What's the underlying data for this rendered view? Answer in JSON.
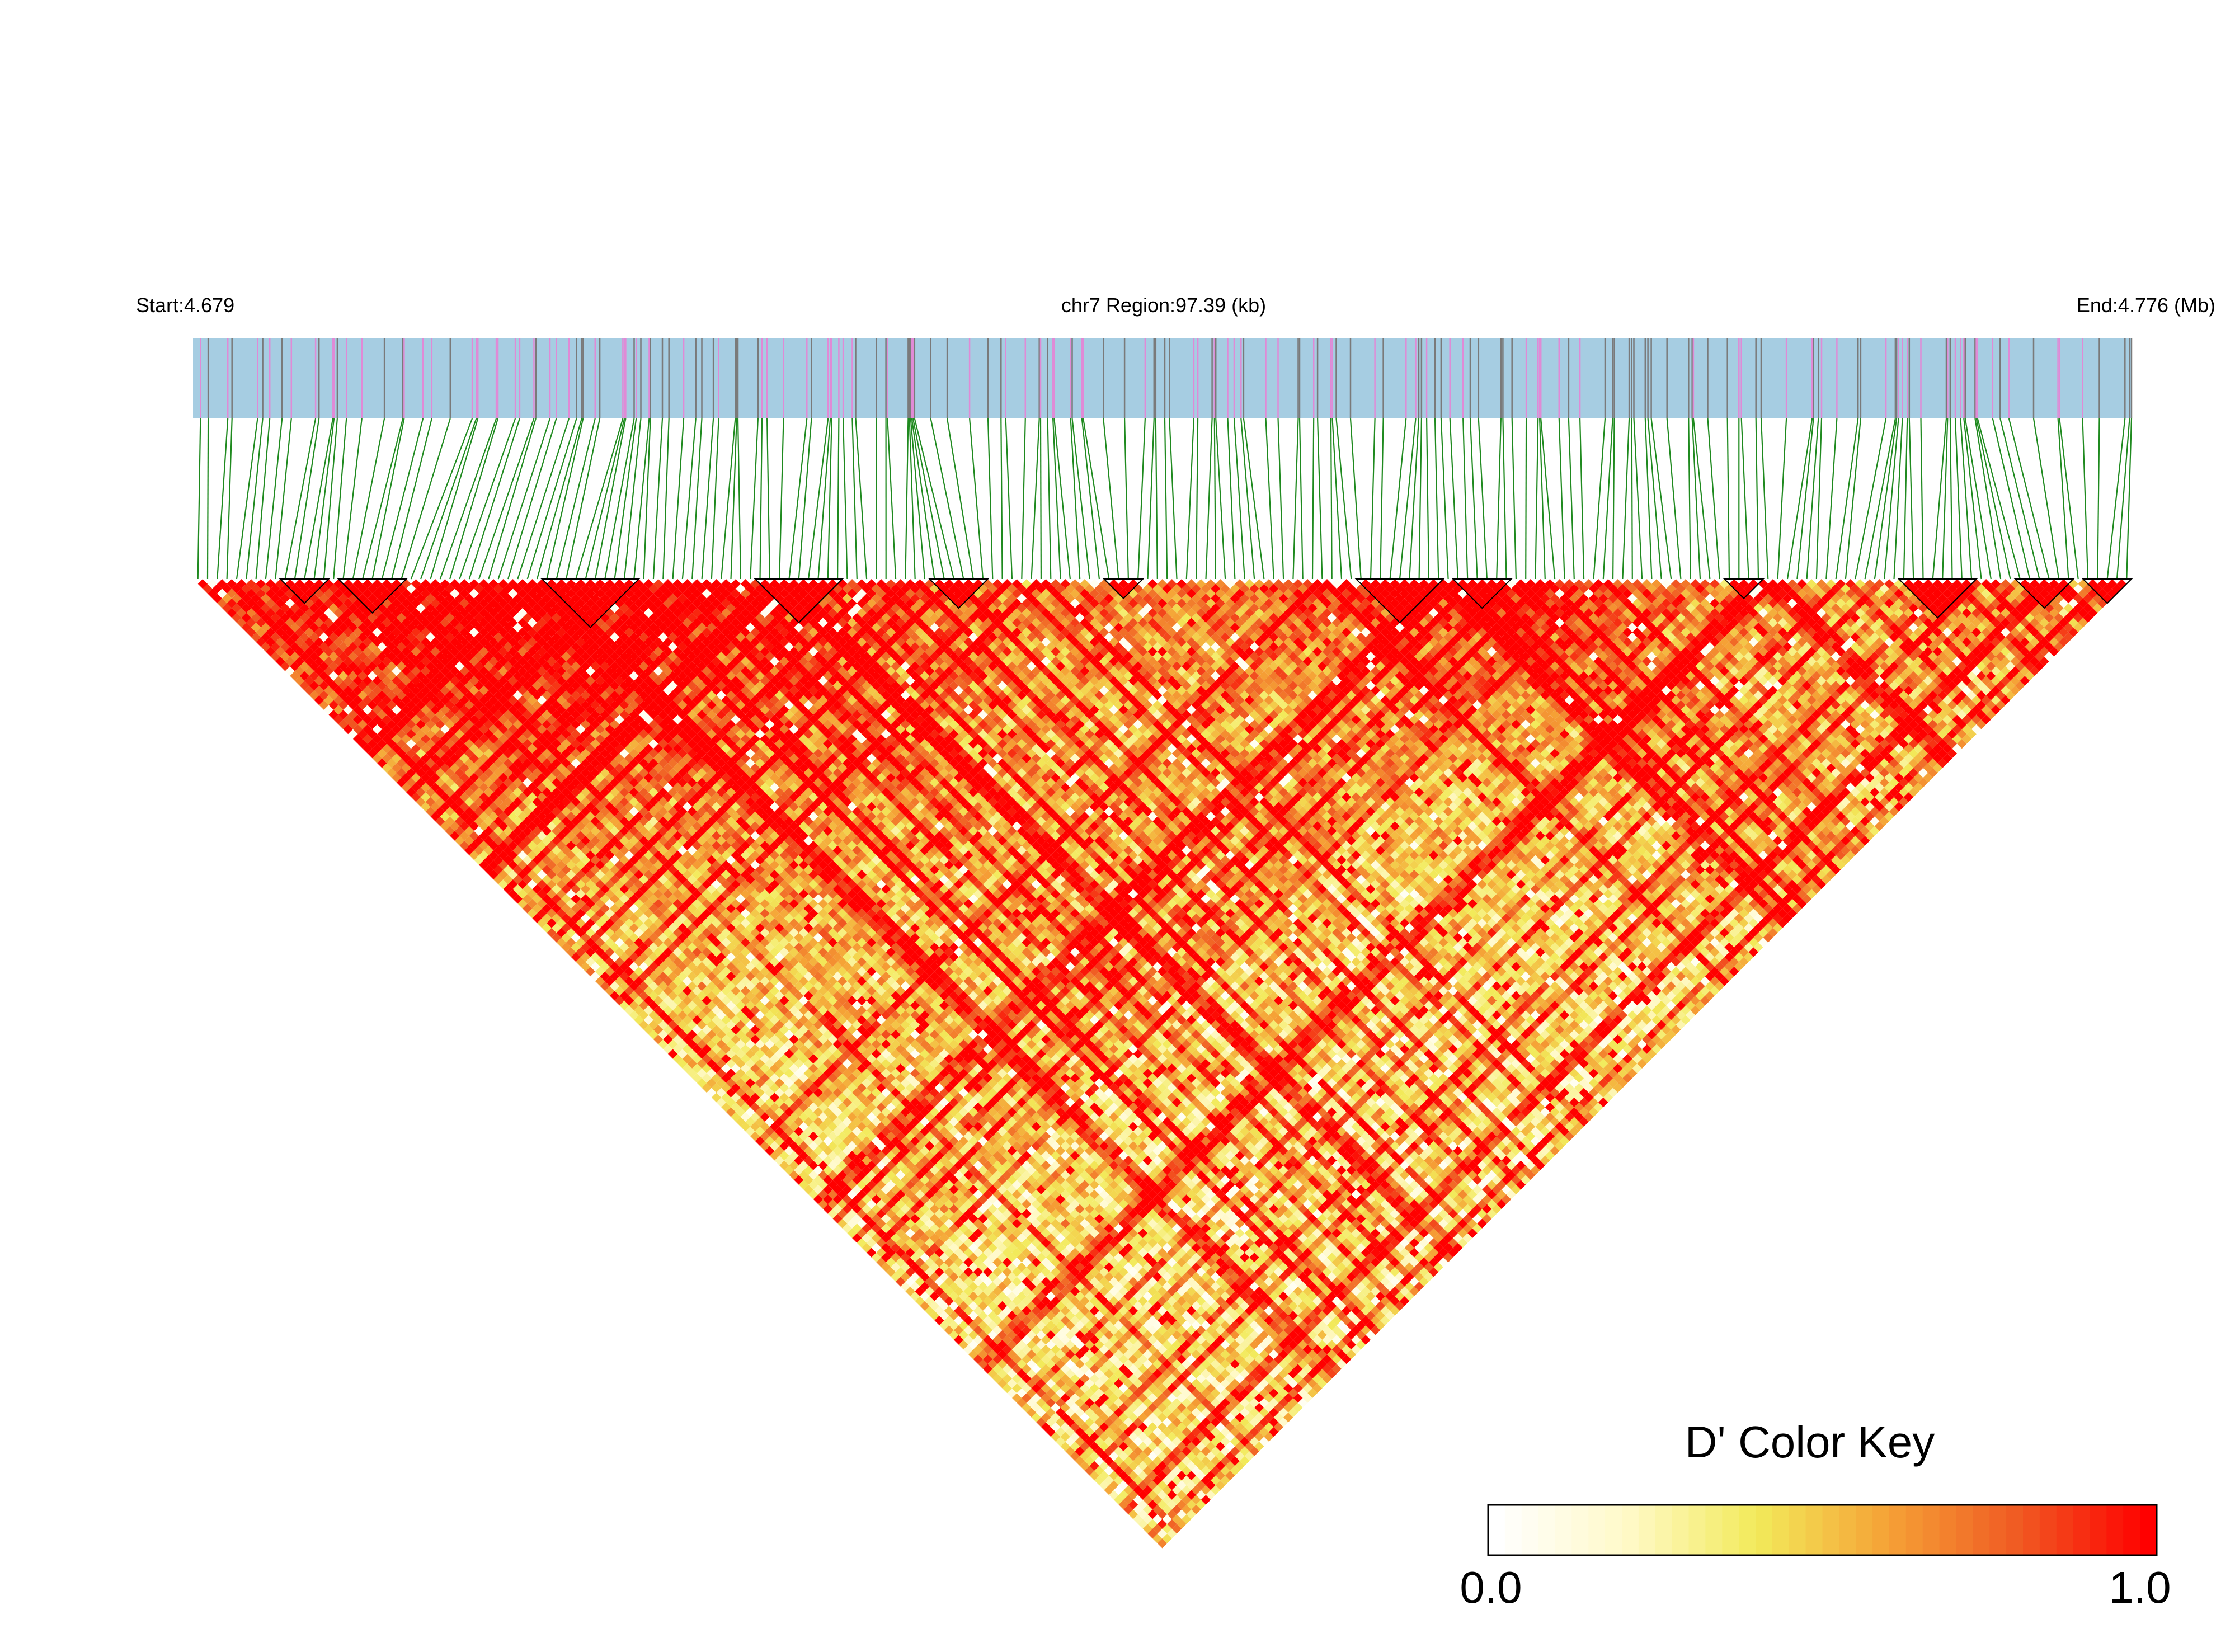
{
  "chart_data": {
    "type": "heatmap",
    "title": "",
    "header": {
      "start_label": "Start:4.679",
      "region_label": "chr7 Region:97.39 (kb)",
      "end_label": "End:4.776 (Mb)"
    },
    "region": {
      "chromosome": "chr7",
      "start_mb": 4.679,
      "end_mb": 4.776,
      "length_kb": 97.39
    },
    "matrix": {
      "metric": "D'",
      "orientation": "triangular, diagonal on top, apex at bottom",
      "snp_count": 200,
      "value_range": [
        0,
        1
      ],
      "description_note": ""
    },
    "color_key": {
      "title": "D' Color Key",
      "min_label": "0.0",
      "max_label": "1.0",
      "min": 0.0,
      "max": 1.0,
      "colors": [
        "#ffffff",
        "#fff9c8",
        "#f2ea5a",
        "#f5a236",
        "#f05a23",
        "#ff0000"
      ]
    },
    "colors": {
      "track_background": "#a6cde2",
      "snp_line_a": "#7a7a7a",
      "snp_line_b": "#e08ad6",
      "connector": "#1f8a1f",
      "block_outline": "#000000"
    }
  }
}
